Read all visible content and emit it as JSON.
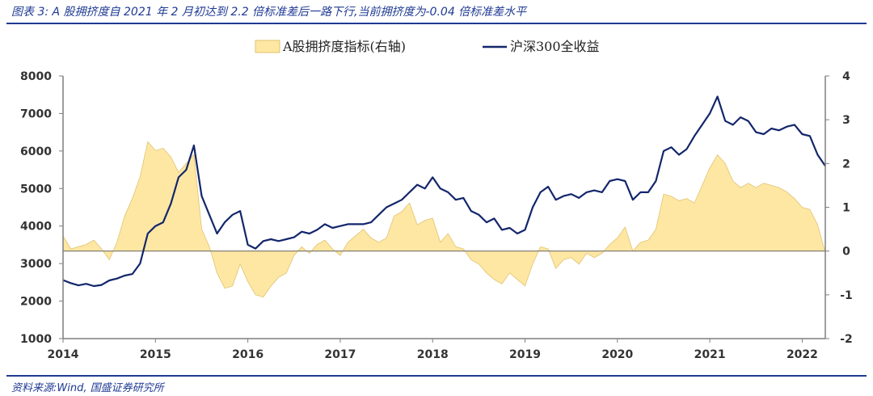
{
  "header": {
    "title": "图表 3:  A 股拥挤度自 2021 年 2 月初达到 2.2 倍标准差后一路下行,当前拥挤度为-0.04 倍标准差水平"
  },
  "footer": {
    "source": "资料来源:Wind, 国盛证券研究所"
  },
  "colors": {
    "area_fill": "#fde7a3",
    "area_stroke": "#e0c372",
    "line": "#13266b",
    "axis": "#7f7f7f",
    "text_accent": "#1f3a93"
  },
  "chart_data": {
    "type": "line",
    "legend": {
      "position": "top-center",
      "entries": [
        "A股拥挤度指标(右轴)",
        "沪深300全收益"
      ]
    },
    "x_axis": {
      "ticks": [
        "2014",
        "2015",
        "2016",
        "2017",
        "2018",
        "2019",
        "2020",
        "2021",
        "2022"
      ],
      "range": [
        "2014-01",
        "2022-04"
      ]
    },
    "y_left": {
      "range": [
        1000,
        8000
      ],
      "ticks": [
        "1000",
        "2000",
        "3000",
        "4000",
        "5000",
        "6000",
        "7000",
        "8000"
      ]
    },
    "y_right": {
      "range": [
        -2,
        4
      ],
      "ticks": [
        "-2",
        "-1",
        "0",
        "1",
        "2",
        "3",
        "4"
      ]
    },
    "grid": false,
    "series": [
      {
        "name": "A股拥挤度指标(右轴)",
        "type": "area",
        "axis": "right",
        "points": [
          [
            "2014-01",
            0.35
          ],
          [
            "2014-02",
            0.05
          ],
          [
            "2014-04",
            0.15
          ],
          [
            "2014-05",
            0.25
          ],
          [
            "2014-06",
            0.05
          ],
          [
            "2014-07",
            -0.2
          ],
          [
            "2014-08",
            0.2
          ],
          [
            "2014-09",
            0.8
          ],
          [
            "2014-10",
            1.2
          ],
          [
            "2014-11",
            1.7
          ],
          [
            "2014-12",
            2.5
          ],
          [
            "2015-01",
            2.3
          ],
          [
            "2015-02",
            2.35
          ],
          [
            "2015-03",
            2.15
          ],
          [
            "2015-04",
            1.8
          ],
          [
            "2015-05",
            2.0
          ],
          [
            "2015-06",
            2.2
          ],
          [
            "2015-07",
            0.5
          ],
          [
            "2015-08",
            0.1
          ],
          [
            "2015-09",
            -0.5
          ],
          [
            "2015-10",
            -0.85
          ],
          [
            "2015-11",
            -0.8
          ],
          [
            "2015-12",
            -0.3
          ],
          [
            "2016-01",
            -0.7
          ],
          [
            "2016-02",
            -1.0
          ],
          [
            "2016-03",
            -1.05
          ],
          [
            "2016-04",
            -0.8
          ],
          [
            "2016-05",
            -0.6
          ],
          [
            "2016-06",
            -0.5
          ],
          [
            "2016-07",
            -0.1
          ],
          [
            "2016-08",
            0.1
          ],
          [
            "2016-09",
            -0.05
          ],
          [
            "2016-10",
            0.15
          ],
          [
            "2016-11",
            0.25
          ],
          [
            "2016-12",
            0.05
          ],
          [
            "2017-01",
            -0.1
          ],
          [
            "2017-02",
            0.2
          ],
          [
            "2017-03",
            0.35
          ],
          [
            "2017-04",
            0.5
          ],
          [
            "2017-05",
            0.3
          ],
          [
            "2017-06",
            0.2
          ],
          [
            "2017-07",
            0.3
          ],
          [
            "2017-08",
            0.8
          ],
          [
            "2017-09",
            0.9
          ],
          [
            "2017-10",
            1.1
          ],
          [
            "2017-11",
            0.6
          ],
          [
            "2017-12",
            0.7
          ],
          [
            "2018-01",
            0.75
          ],
          [
            "2018-02",
            0.2
          ],
          [
            "2018-03",
            0.4
          ],
          [
            "2018-04",
            0.1
          ],
          [
            "2018-05",
            0.05
          ],
          [
            "2018-06",
            -0.2
          ],
          [
            "2018-07",
            -0.3
          ],
          [
            "2018-08",
            -0.5
          ],
          [
            "2018-09",
            -0.65
          ],
          [
            "2018-10",
            -0.75
          ],
          [
            "2018-11",
            -0.5
          ],
          [
            "2018-12",
            -0.65
          ],
          [
            "2019-01",
            -0.8
          ],
          [
            "2019-02",
            -0.3
          ],
          [
            "2019-03",
            0.1
          ],
          [
            "2019-04",
            0.05
          ],
          [
            "2019-05",
            -0.4
          ],
          [
            "2019-06",
            -0.2
          ],
          [
            "2019-07",
            -0.15
          ],
          [
            "2019-08",
            -0.3
          ],
          [
            "2019-09",
            -0.05
          ],
          [
            "2019-10",
            -0.15
          ],
          [
            "2019-11",
            -0.05
          ],
          [
            "2019-12",
            0.15
          ],
          [
            "2020-01",
            0.3
          ],
          [
            "2020-02",
            0.55
          ],
          [
            "2020-03",
            0.0
          ],
          [
            "2020-04",
            0.2
          ],
          [
            "2020-05",
            0.25
          ],
          [
            "2020-06",
            0.5
          ],
          [
            "2020-07",
            1.3
          ],
          [
            "2020-08",
            1.25
          ],
          [
            "2020-09",
            1.15
          ],
          [
            "2020-10",
            1.2
          ],
          [
            "2020-11",
            1.1
          ],
          [
            "2020-12",
            1.5
          ],
          [
            "2021-01",
            1.9
          ],
          [
            "2021-02",
            2.2
          ],
          [
            "2021-03",
            2.0
          ],
          [
            "2021-04",
            1.6
          ],
          [
            "2021-05",
            1.45
          ],
          [
            "2021-06",
            1.55
          ],
          [
            "2021-07",
            1.45
          ],
          [
            "2021-08",
            1.55
          ],
          [
            "2021-09",
            1.5
          ],
          [
            "2021-10",
            1.45
          ],
          [
            "2021-11",
            1.35
          ],
          [
            "2021-12",
            1.2
          ],
          [
            "2022-01",
            1.0
          ],
          [
            "2022-02",
            0.95
          ],
          [
            "2022-03",
            0.6
          ],
          [
            "2022-04",
            -0.04
          ]
        ]
      },
      {
        "name": "沪深300全收益",
        "type": "line",
        "axis": "left",
        "points": [
          [
            "2014-01",
            2560
          ],
          [
            "2014-02",
            2480
          ],
          [
            "2014-03",
            2420
          ],
          [
            "2014-04",
            2460
          ],
          [
            "2014-05",
            2400
          ],
          [
            "2014-06",
            2430
          ],
          [
            "2014-07",
            2550
          ],
          [
            "2014-08",
            2600
          ],
          [
            "2014-09",
            2680
          ],
          [
            "2014-10",
            2720
          ],
          [
            "2014-11",
            3000
          ],
          [
            "2014-12",
            3800
          ],
          [
            "2015-01",
            4000
          ],
          [
            "2015-02",
            4100
          ],
          [
            "2015-03",
            4600
          ],
          [
            "2015-04",
            5300
          ],
          [
            "2015-05",
            5500
          ],
          [
            "2015-06",
            6150
          ],
          [
            "2015-07",
            4800
          ],
          [
            "2015-08",
            4300
          ],
          [
            "2015-09",
            3800
          ],
          [
            "2015-10",
            4100
          ],
          [
            "2015-11",
            4300
          ],
          [
            "2015-12",
            4400
          ],
          [
            "2016-01",
            3500
          ],
          [
            "2016-02",
            3400
          ],
          [
            "2016-03",
            3600
          ],
          [
            "2016-04",
            3650
          ],
          [
            "2016-05",
            3600
          ],
          [
            "2016-06",
            3650
          ],
          [
            "2016-07",
            3700
          ],
          [
            "2016-08",
            3850
          ],
          [
            "2016-09",
            3800
          ],
          [
            "2016-10",
            3900
          ],
          [
            "2016-11",
            4050
          ],
          [
            "2016-12",
            3950
          ],
          [
            "2017-01",
            4000
          ],
          [
            "2017-02",
            4050
          ],
          [
            "2017-03",
            4050
          ],
          [
            "2017-04",
            4050
          ],
          [
            "2017-05",
            4100
          ],
          [
            "2017-06",
            4300
          ],
          [
            "2017-07",
            4500
          ],
          [
            "2017-08",
            4600
          ],
          [
            "2017-09",
            4700
          ],
          [
            "2017-10",
            4900
          ],
          [
            "2017-11",
            5100
          ],
          [
            "2017-12",
            5000
          ],
          [
            "2018-01",
            5300
          ],
          [
            "2018-02",
            5000
          ],
          [
            "2018-03",
            4900
          ],
          [
            "2018-04",
            4700
          ],
          [
            "2018-05",
            4750
          ],
          [
            "2018-06",
            4400
          ],
          [
            "2018-07",
            4300
          ],
          [
            "2018-08",
            4100
          ],
          [
            "2018-09",
            4200
          ],
          [
            "2018-10",
            3900
          ],
          [
            "2018-11",
            3950
          ],
          [
            "2018-12",
            3800
          ],
          [
            "2019-01",
            3900
          ],
          [
            "2019-02",
            4500
          ],
          [
            "2019-03",
            4900
          ],
          [
            "2019-04",
            5050
          ],
          [
            "2019-05",
            4700
          ],
          [
            "2019-06",
            4800
          ],
          [
            "2019-07",
            4850
          ],
          [
            "2019-08",
            4750
          ],
          [
            "2019-09",
            4900
          ],
          [
            "2019-10",
            4950
          ],
          [
            "2019-11",
            4900
          ],
          [
            "2019-12",
            5200
          ],
          [
            "2020-01",
            5250
          ],
          [
            "2020-02",
            5200
          ],
          [
            "2020-03",
            4700
          ],
          [
            "2020-04",
            4900
          ],
          [
            "2020-05",
            4900
          ],
          [
            "2020-06",
            5200
          ],
          [
            "2020-07",
            6000
          ],
          [
            "2020-08",
            6100
          ],
          [
            "2020-09",
            5900
          ],
          [
            "2020-10",
            6050
          ],
          [
            "2020-11",
            6400
          ],
          [
            "2020-12",
            6700
          ],
          [
            "2021-01",
            7000
          ],
          [
            "2021-02",
            7450
          ],
          [
            "2021-03",
            6800
          ],
          [
            "2021-04",
            6700
          ],
          [
            "2021-05",
            6900
          ],
          [
            "2021-06",
            6800
          ],
          [
            "2021-07",
            6500
          ],
          [
            "2021-08",
            6450
          ],
          [
            "2021-09",
            6600
          ],
          [
            "2021-10",
            6550
          ],
          [
            "2021-11",
            6650
          ],
          [
            "2021-12",
            6700
          ],
          [
            "2022-01",
            6450
          ],
          [
            "2022-02",
            6400
          ],
          [
            "2022-03",
            5900
          ],
          [
            "2022-04",
            5600
          ]
        ]
      }
    ]
  }
}
